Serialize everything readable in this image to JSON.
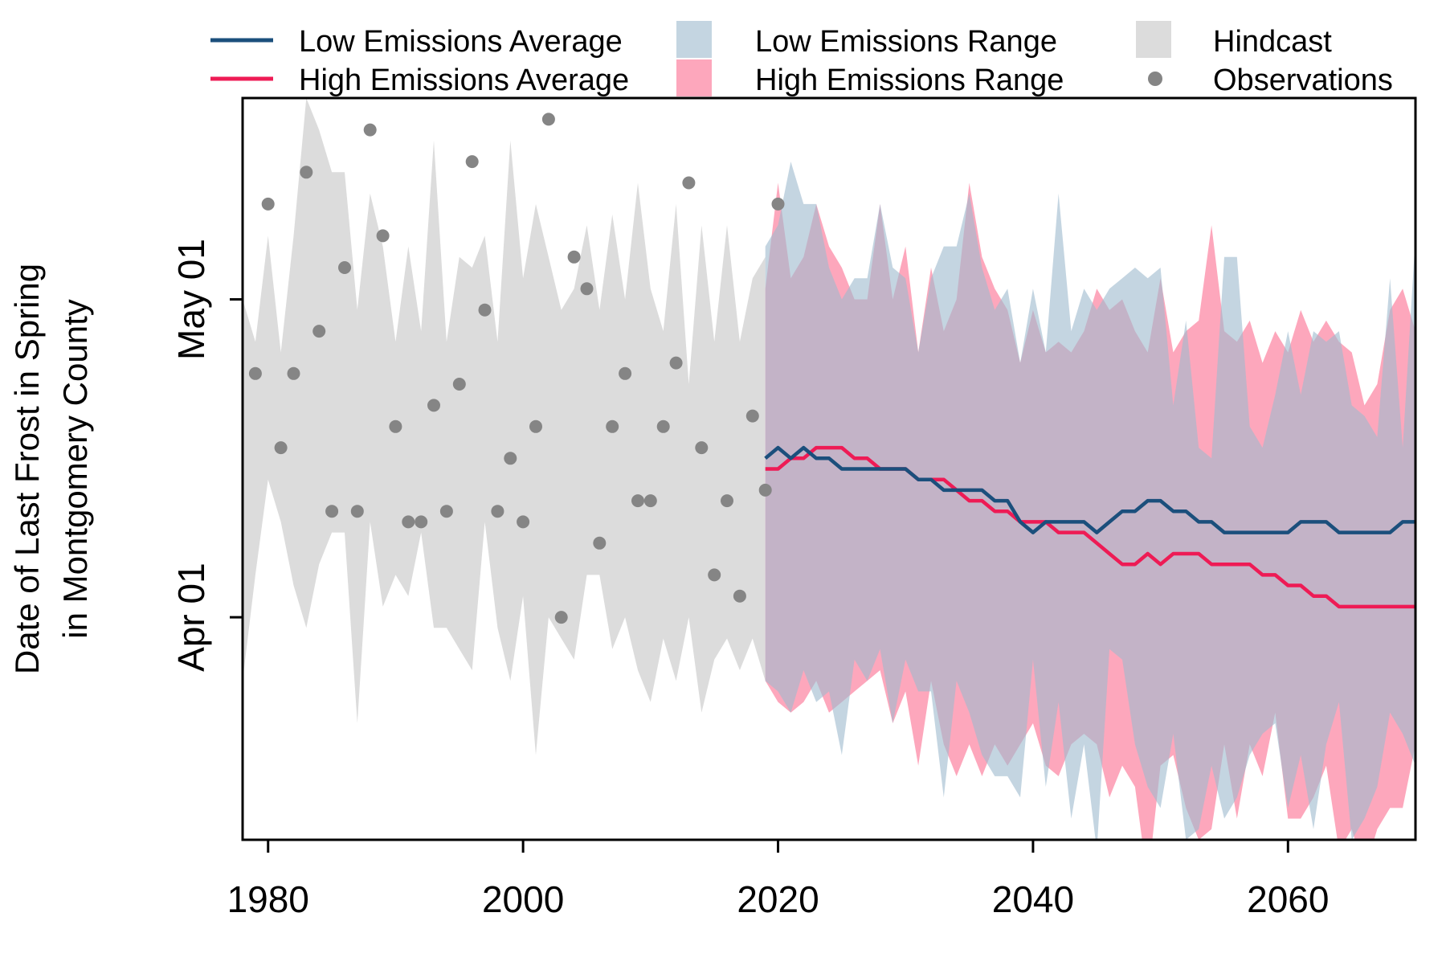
{
  "chart_data": {
    "type": "area",
    "title": "",
    "xlabel": "",
    "ylabel": [
      "Date of Last Frost in Spring",
      "in Montgomery County"
    ],
    "xlim": [
      1978,
      2070
    ],
    "ylim": [
      "Mar 11",
      "May 20"
    ],
    "x_ticks": [
      1980,
      2000,
      2020,
      2040,
      2060
    ],
    "y_ticks": [
      {
        "label": "Apr 01",
        "date": "Apr 01"
      },
      {
        "label": "May 01",
        "date": "May 01"
      }
    ],
    "grid": false,
    "legend_position": "top",
    "legend": [
      {
        "key": "low_avg",
        "label": "Low Emissions Average",
        "symbol": "line"
      },
      {
        "key": "high_avg",
        "label": "High Emissions Average",
        "symbol": "line"
      },
      {
        "key": "low_range",
        "label": "Low Emissions Range",
        "symbol": "box"
      },
      {
        "key": "high_range",
        "label": "High Emissions Range",
        "symbol": "box"
      },
      {
        "key": "hindcast",
        "label": "Hindcast",
        "symbol": "box"
      },
      {
        "key": "observations",
        "label": "Observations",
        "symbol": "dot"
      }
    ],
    "colors": {
      "low_avg": "#1b4f7c",
      "high_avg": "#ee1b55",
      "low_range": "#9fbccf",
      "high_range": "#fda7bc",
      "hindcast": "#dcdcdc",
      "observations": "#858585"
    },
    "hindcast": {
      "years": [
        1978,
        1979,
        1980,
        1981,
        1982,
        1983,
        1984,
        1985,
        1986,
        1987,
        1988,
        1989,
        1990,
        1991,
        1992,
        1993,
        1994,
        1995,
        1996,
        1997,
        1998,
        1999,
        2000,
        2001,
        2002,
        2003,
        2004,
        2005,
        2006,
        2007,
        2008,
        2009,
        2010,
        2011,
        2012,
        2013,
        2014,
        2015,
        2016,
        2017,
        2018,
        2019
      ],
      "upper": [
        "May 01",
        "Apr 27",
        "May 07",
        "Apr 26",
        "May 07",
        "May 20",
        "May 17",
        "May 13",
        "May 13",
        "Apr 30",
        "May 11",
        "May 06",
        "Apr 27",
        "May 06",
        "Apr 28",
        "May 16",
        "Apr 27",
        "May 05",
        "May 04",
        "May 07",
        "Apr 27",
        "May 16",
        "May 03",
        "May 10",
        "May 05",
        "Apr 30",
        "May 02",
        "May 08",
        "Apr 30",
        "May 09",
        "May 01",
        "May 12",
        "May 02",
        "Apr 28",
        "May 10",
        "Apr 23",
        "May 08",
        "Apr 27",
        "May 08",
        "Apr 27",
        "May 03",
        "May 05"
      ],
      "lower": [
        "Mar 26",
        "Apr 05",
        "Apr 14",
        "Apr 10",
        "Apr 04",
        "Mar 31",
        "Apr 06",
        "Apr 09",
        "Apr 09",
        "Mar 22",
        "Apr 10",
        "Apr 02",
        "Apr 05",
        "Apr 03",
        "Apr 09",
        "Mar 31",
        "Mar 31",
        "Mar 29",
        "Mar 27",
        "Apr 10",
        "Mar 31",
        "Mar 26",
        "Apr 03",
        "Mar 19",
        "Apr 01",
        "Mar 30",
        "Mar 28",
        "Apr 05",
        "Apr 05",
        "Mar 29",
        "Apr 01",
        "Mar 27",
        "Mar 24",
        "Mar 30",
        "Mar 26",
        "Apr 01",
        "Mar 23",
        "Mar 28",
        "Mar 30",
        "Mar 27",
        "Mar 30",
        "Mar 26"
      ]
    },
    "observations": {
      "years": [
        1979,
        1980,
        1981,
        1982,
        1983,
        1984,
        1985,
        1986,
        1987,
        1988,
        1989,
        1990,
        1991,
        1992,
        1993,
        1994,
        1995,
        1996,
        1997,
        1998,
        1999,
        2000,
        2001,
        2002,
        2003,
        2004,
        2005,
        2006,
        2007,
        2008,
        2009,
        2010,
        2011,
        2012,
        2013,
        2014,
        2015,
        2016,
        2017,
        2018,
        2019,
        2020
      ],
      "dates": [
        "Apr 24",
        "May 10",
        "Apr 17",
        "Apr 24",
        "May 13",
        "Apr 28",
        "Apr 11",
        "May 04",
        "Apr 11",
        "May 17",
        "May 07",
        "Apr 19",
        "Apr 10",
        "Apr 10",
        "Apr 21",
        "Apr 11",
        "Apr 23",
        "May 14",
        "Apr 30",
        "Apr 11",
        "Apr 16",
        "Apr 10",
        "Apr 19",
        "May 18",
        "Apr 01",
        "May 05",
        "May 02",
        "Apr 08",
        "Apr 19",
        "Apr 24",
        "Apr 12",
        "Apr 12",
        "Apr 19",
        "Apr 25",
        "May 12",
        "Apr 17",
        "Apr 05",
        "Apr 12",
        "Apr 03",
        "Apr 20",
        "Apr 13",
        "May 10"
      ]
    },
    "low_range": {
      "years": [
        2019,
        2020,
        2021,
        2022,
        2023,
        2024,
        2025,
        2026,
        2027,
        2028,
        2029,
        2030,
        2031,
        2032,
        2033,
        2034,
        2035,
        2036,
        2037,
        2038,
        2039,
        2040,
        2041,
        2042,
        2043,
        2044,
        2045,
        2046,
        2047,
        2048,
        2049,
        2050,
        2051,
        2052,
        2053,
        2054,
        2055,
        2056,
        2057,
        2058,
        2059,
        2060,
        2061,
        2062,
        2063,
        2064,
        2065,
        2066,
        2067,
        2068,
        2069,
        2070
      ],
      "upper": [
        "May 06",
        "May 08",
        "May 14",
        "May 10",
        "May 10",
        "May 04",
        "May 01",
        "May 03",
        "May 03",
        "May 10",
        "May 04",
        "May 03",
        "Apr 26",
        "May 03",
        "May 06",
        "May 06",
        "May 11",
        "May 04",
        "Apr 30",
        "May 02",
        "Apr 25",
        "May 02",
        "Apr 26",
        "May 11",
        "Apr 28",
        "May 02",
        "Apr 30",
        "May 02",
        "May 03",
        "May 04",
        "May 03",
        "May 04",
        "Apr 21",
        "Apr 29",
        "Apr 17",
        "Apr 16",
        "May 05",
        "May 05",
        "Apr 19",
        "Apr 17",
        "Apr 22",
        "Apr 28",
        "Apr 22",
        "Apr 28",
        "Apr 27",
        "Apr 28",
        "Apr 21",
        "Apr 20",
        "Apr 18",
        "May 03",
        "Apr 17",
        "May 07"
      ],
      "lower": [
        "Mar 26",
        "Mar 25",
        "Mar 23",
        "Mar 27",
        "Mar 24",
        "Mar 25",
        "Mar 19",
        "Mar 28",
        "Mar 26",
        "Mar 29",
        "Mar 22",
        "Mar 28",
        "Mar 25",
        "Mar 25",
        "Mar 15",
        "Mar 26",
        "Mar 23",
        "Mar 19",
        "Mar 17",
        "Mar 17",
        "Mar 15",
        "Mar 28",
        "Mar 16",
        "Mar 24",
        "Mar 13",
        "Mar 20",
        "Mar 10",
        "Mar 29",
        "Mar 28",
        "Mar 20",
        "Mar 16",
        "Mar 14",
        "Mar 21",
        "Mar 11",
        "Mar 12",
        "Mar 18",
        "Mar 13",
        "Mar 15",
        "Mar 19",
        "Mar 21",
        "Mar 22",
        "Mar 14",
        "Mar 19",
        "Mar 12",
        "Mar 20",
        "Mar 24",
        "Mar 11",
        "Mar 13",
        "Mar 16",
        "Mar 23",
        "Mar 21",
        "Mar 18"
      ]
    },
    "high_range": {
      "years": [
        2019,
        2020,
        2021,
        2022,
        2023,
        2024,
        2025,
        2026,
        2027,
        2028,
        2029,
        2030,
        2031,
        2032,
        2033,
        2034,
        2035,
        2036,
        2037,
        2038,
        2039,
        2040,
        2041,
        2042,
        2043,
        2044,
        2045,
        2046,
        2047,
        2048,
        2049,
        2050,
        2051,
        2052,
        2053,
        2054,
        2055,
        2056,
        2057,
        2058,
        2059,
        2060,
        2061,
        2062,
        2063,
        2064,
        2065,
        2066,
        2067,
        2068,
        2069,
        2070
      ],
      "upper": [
        "May 02",
        "May 12",
        "May 03",
        "May 05",
        "May 10",
        "May 06",
        "May 04",
        "May 01",
        "May 01",
        "May 10",
        "May 01",
        "May 06",
        "Apr 26",
        "May 04",
        "Apr 28",
        "May 01",
        "May 12",
        "May 05",
        "May 02",
        "Apr 30",
        "Apr 25",
        "Apr 30",
        "Apr 26",
        "Apr 27",
        "Apr 26",
        "Apr 28",
        "May 02",
        "Apr 30",
        "May 01",
        "Apr 28",
        "Apr 26",
        "May 03",
        "Apr 26",
        "Apr 28",
        "Apr 29",
        "May 08",
        "Apr 28",
        "Apr 27",
        "Apr 29",
        "Apr 25",
        "Apr 28",
        "Apr 26",
        "Apr 30",
        "Apr 27",
        "Apr 29",
        "Apr 27",
        "Apr 26",
        "Apr 21",
        "Apr 23",
        "Apr 30",
        "May 02",
        "Apr 28"
      ],
      "lower": [
        "Mar 26",
        "Mar 24",
        "Mar 23",
        "Mar 24",
        "Mar 26",
        "Mar 23",
        "Mar 24",
        "Mar 25",
        "Mar 26",
        "Mar 27",
        "Mar 22",
        "Mar 25",
        "Mar 18",
        "Mar 26",
        "Mar 20",
        "Mar 17",
        "Mar 20",
        "Mar 17",
        "Mar 20",
        "Mar 18",
        "Mar 20",
        "Mar 22",
        "Mar 18",
        "Mar 17",
        "Mar 20",
        "Mar 21",
        "Mar 20",
        "Mar 15",
        "Mar 18",
        "Mar 16",
        "Mar 07",
        "Mar 18",
        "Mar 19",
        "Mar 14",
        "Mar 11",
        "Mar 12",
        "Mar 20",
        "Mar 13",
        "Mar 20",
        "Mar 17",
        "Mar 23",
        "Mar 13",
        "Mar 13",
        "Mar 15",
        "Mar 18",
        "Mar 10",
        "Mar 12",
        "Mar 08",
        "Mar 12",
        "Mar 14",
        "Mar 14",
        "Mar 20"
      ]
    },
    "low_avg": {
      "years": [
        2019,
        2020,
        2021,
        2022,
        2023,
        2024,
        2025,
        2026,
        2027,
        2028,
        2029,
        2030,
        2031,
        2032,
        2033,
        2034,
        2035,
        2036,
        2037,
        2038,
        2039,
        2040,
        2041,
        2042,
        2043,
        2044,
        2045,
        2046,
        2047,
        2048,
        2049,
        2050,
        2051,
        2052,
        2053,
        2054,
        2055,
        2056,
        2057,
        2058,
        2059,
        2060,
        2061,
        2062,
        2063,
        2064,
        2065,
        2066,
        2067,
        2068,
        2069,
        2070
      ],
      "dates": [
        "Apr 16",
        "Apr 17",
        "Apr 16",
        "Apr 17",
        "Apr 16",
        "Apr 16",
        "Apr 15",
        "Apr 15",
        "Apr 15",
        "Apr 15",
        "Apr 15",
        "Apr 15",
        "Apr 14",
        "Apr 14",
        "Apr 13",
        "Apr 13",
        "Apr 13",
        "Apr 13",
        "Apr 12",
        "Apr 12",
        "Apr 10",
        "Apr 09",
        "Apr 10",
        "Apr 10",
        "Apr 10",
        "Apr 10",
        "Apr 09",
        "Apr 10",
        "Apr 11",
        "Apr 11",
        "Apr 12",
        "Apr 12",
        "Apr 11",
        "Apr 11",
        "Apr 10",
        "Apr 10",
        "Apr 09",
        "Apr 09",
        "Apr 09",
        "Apr 09",
        "Apr 09",
        "Apr 09",
        "Apr 10",
        "Apr 10",
        "Apr 10",
        "Apr 09",
        "Apr 09",
        "Apr 09",
        "Apr 09",
        "Apr 09",
        "Apr 10",
        "Apr 10"
      ]
    },
    "high_avg": {
      "years": [
        2019,
        2020,
        2021,
        2022,
        2023,
        2024,
        2025,
        2026,
        2027,
        2028,
        2029,
        2030,
        2031,
        2032,
        2033,
        2034,
        2035,
        2036,
        2037,
        2038,
        2039,
        2040,
        2041,
        2042,
        2043,
        2044,
        2045,
        2046,
        2047,
        2048,
        2049,
        2050,
        2051,
        2052,
        2053,
        2054,
        2055,
        2056,
        2057,
        2058,
        2059,
        2060,
        2061,
        2062,
        2063,
        2064,
        2065,
        2066,
        2067,
        2068,
        2069,
        2070
      ],
      "dates": [
        "Apr 15",
        "Apr 15",
        "Apr 16",
        "Apr 16",
        "Apr 17",
        "Apr 17",
        "Apr 17",
        "Apr 16",
        "Apr 16",
        "Apr 15",
        "Apr 15",
        "Apr 15",
        "Apr 14",
        "Apr 14",
        "Apr 14",
        "Apr 13",
        "Apr 12",
        "Apr 12",
        "Apr 11",
        "Apr 11",
        "Apr 10",
        "Apr 10",
        "Apr 10",
        "Apr 09",
        "Apr 09",
        "Apr 09",
        "Apr 08",
        "Apr 07",
        "Apr 06",
        "Apr 06",
        "Apr 07",
        "Apr 06",
        "Apr 07",
        "Apr 07",
        "Apr 07",
        "Apr 06",
        "Apr 06",
        "Apr 06",
        "Apr 06",
        "Apr 05",
        "Apr 05",
        "Apr 04",
        "Apr 04",
        "Apr 03",
        "Apr 03",
        "Apr 02",
        "Apr 02",
        "Apr 02",
        "Apr 02",
        "Apr 02",
        "Apr 02",
        "Apr 02"
      ]
    }
  }
}
